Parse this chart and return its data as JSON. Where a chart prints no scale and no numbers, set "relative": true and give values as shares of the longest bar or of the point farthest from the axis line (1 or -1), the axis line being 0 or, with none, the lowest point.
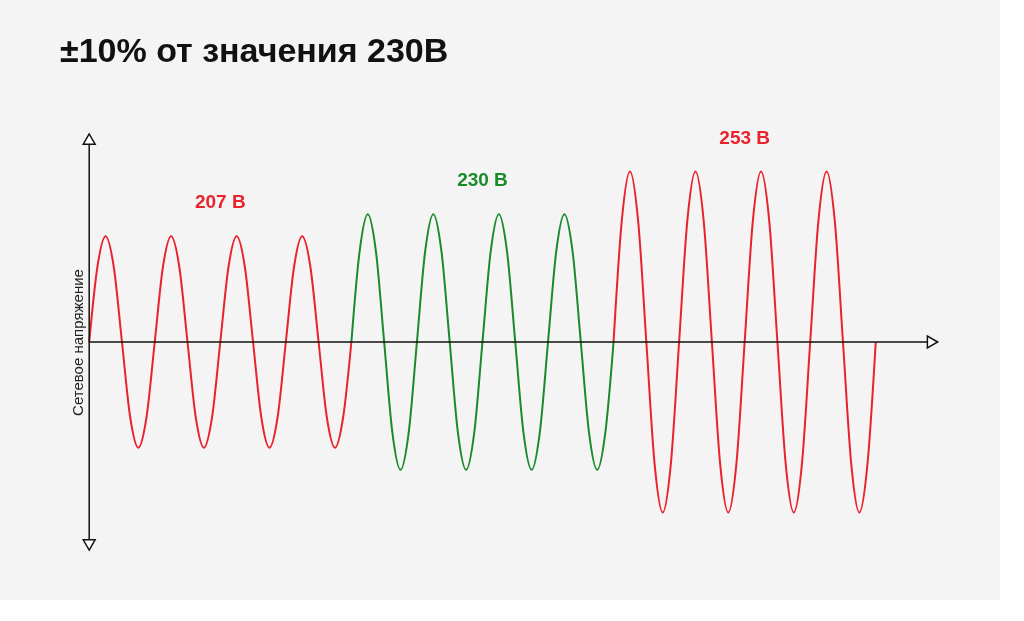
{
  "chart_data": {
    "type": "line",
    "title": "±10% от значения 230В",
    "ylabel": "Сетевое напряжение",
    "relative": true,
    "legend": false,
    "grid": false,
    "marker": "none",
    "line_style": "solid",
    "categories": [
      null,
      null,
      null,
      null,
      null,
      null,
      null,
      null,
      null,
      null,
      null,
      null,
      null,
      null,
      null,
      null,
      null,
      null,
      null,
      null,
      null,
      null,
      null,
      null,
      null,
      null,
      null,
      null,
      null,
      null,
      null,
      null,
      null,
      null,
      null,
      null,
      null,
      null,
      null,
      null,
      null,
      null,
      null,
      null,
      null,
      null,
      null,
      null,
      null,
      null,
      null,
      null,
      null,
      null,
      null,
      null,
      null,
      null,
      null,
      null,
      null,
      null,
      null,
      null,
      null,
      null,
      null,
      null,
      null,
      null,
      null,
      null,
      null,
      null,
      null,
      null,
      null,
      null,
      null,
      null,
      null,
      null,
      null,
      null,
      null,
      null,
      null,
      null,
      null,
      null,
      null,
      null,
      null,
      null,
      null,
      null,
      null
    ],
    "series": [
      {
        "name": "207 В",
        "color": "#e8232b",
        "values": [
          0,
          0.44,
          0.62,
          0.44,
          0,
          -0.44,
          -0.62,
          -0.44,
          0,
          0.44,
          0.62,
          0.44,
          0,
          -0.44,
          -0.62,
          -0.44,
          0,
          0.44,
          0.62,
          0.44,
          0,
          -0.44,
          -0.62,
          -0.44,
          0,
          0.44,
          0.62,
          0.44,
          0,
          -0.44,
          -0.62,
          -0.44,
          0,
          null,
          null,
          null,
          null,
          null,
          null,
          null,
          null,
          null,
          null,
          null,
          null,
          null,
          null,
          null,
          null,
          null,
          null,
          null,
          null,
          null,
          null,
          null,
          null,
          null,
          null,
          null,
          null,
          null,
          null,
          null,
          null,
          null,
          null,
          null,
          null,
          null,
          null,
          null,
          null,
          null,
          null,
          null,
          null,
          null,
          null,
          null,
          null,
          null,
          null,
          null,
          null,
          null,
          null,
          null,
          null,
          null,
          null,
          null,
          null,
          null,
          null,
          null,
          null
        ]
      },
      {
        "name": "230 В",
        "color": "#1b8a2b",
        "values": [
          null,
          null,
          null,
          null,
          null,
          null,
          null,
          null,
          null,
          null,
          null,
          null,
          null,
          null,
          null,
          null,
          null,
          null,
          null,
          null,
          null,
          null,
          null,
          null,
          null,
          null,
          null,
          null,
          null,
          null,
          null,
          null,
          0,
          0.53,
          0.75,
          0.53,
          0,
          -0.53,
          -0.75,
          -0.53,
          0,
          0.53,
          0.75,
          0.53,
          0,
          -0.53,
          -0.75,
          -0.53,
          0,
          0.53,
          0.75,
          0.53,
          0,
          -0.53,
          -0.75,
          -0.53,
          0,
          0.53,
          0.75,
          0.53,
          0,
          -0.53,
          -0.75,
          -0.53,
          0,
          null,
          null,
          null,
          null,
          null,
          null,
          null,
          null,
          null,
          null,
          null,
          null,
          null,
          null,
          null,
          null,
          null,
          null,
          null,
          null,
          null,
          null,
          null,
          null,
          null,
          null,
          null,
          null,
          null,
          null,
          null,
          null
        ]
      },
      {
        "name": "253 В",
        "color": "#e8232b",
        "values": [
          null,
          null,
          null,
          null,
          null,
          null,
          null,
          null,
          null,
          null,
          null,
          null,
          null,
          null,
          null,
          null,
          null,
          null,
          null,
          null,
          null,
          null,
          null,
          null,
          null,
          null,
          null,
          null,
          null,
          null,
          null,
          null,
          null,
          null,
          null,
          null,
          null,
          null,
          null,
          null,
          null,
          null,
          null,
          null,
          null,
          null,
          null,
          null,
          null,
          null,
          null,
          null,
          null,
          null,
          null,
          null,
          null,
          null,
          null,
          null,
          null,
          null,
          null,
          null,
          0,
          0.71,
          1,
          0.71,
          0,
          -0.71,
          -1,
          -0.71,
          0,
          0.71,
          1,
          0.71,
          0,
          -0.71,
          -1,
          -0.71,
          0,
          0.71,
          1,
          0.71,
          0,
          -0.71,
          -1,
          -0.71,
          0,
          0.71,
          1,
          0.71,
          0,
          -0.71,
          -1,
          -0.71,
          0
        ]
      }
    ]
  }
}
